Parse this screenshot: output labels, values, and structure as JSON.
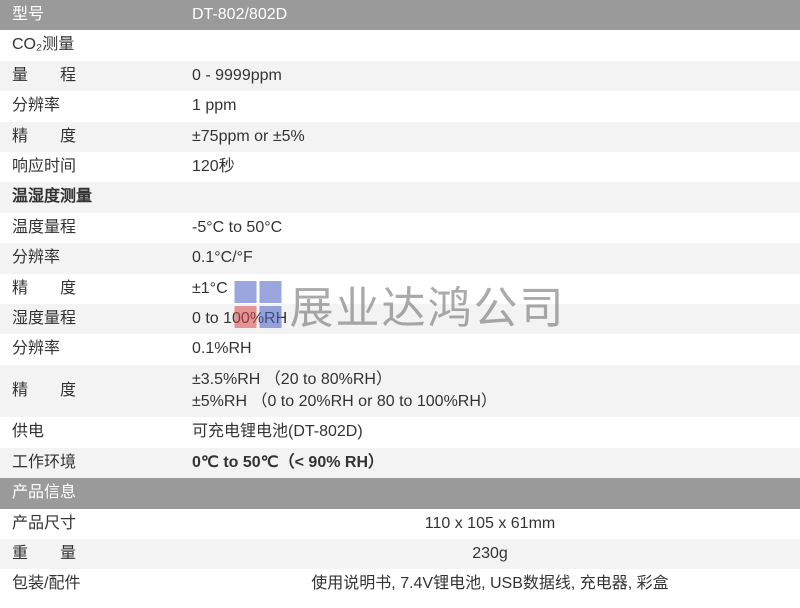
{
  "colors": {
    "darkHeader": "#9a9a9a",
    "lightRow": "#f3f3f3",
    "whiteRow": "#ffffff",
    "text": "#333333",
    "headerText": "#ffffff",
    "wmBlue": "#4a5fc4",
    "wmRed": "#d64545",
    "wmText": "#666666"
  },
  "watermark": {
    "text": "展业达鸿公司"
  },
  "rows": [
    {
      "tone": "dark",
      "label": "型号",
      "value": "DT-802/802D"
    },
    {
      "tone": "white",
      "label": "CO₂测量",
      "section": true
    },
    {
      "tone": "light",
      "label": "量　　程",
      "value": "0 - 9999ppm"
    },
    {
      "tone": "white",
      "label": "分辨率",
      "value": "1 ppm"
    },
    {
      "tone": "light",
      "label": "精　　度",
      "value": "±75ppm or ±5%"
    },
    {
      "tone": "white",
      "label": "响应时间",
      "value": "120秒"
    },
    {
      "tone": "light",
      "label": "温湿度测量",
      "bold": true,
      "section": true
    },
    {
      "tone": "white",
      "label": "温度量程",
      "value": "-5°C to 50°C"
    },
    {
      "tone": "light",
      "label": "分辨率",
      "value": "0.1°C/°F"
    },
    {
      "tone": "white",
      "label": "精　　度",
      "value": "±1°C"
    },
    {
      "tone": "light",
      "label": "湿度量程",
      "value": "0 to 100%RH"
    },
    {
      "tone": "white",
      "label": "分辨率",
      "value": "0.1%RH"
    },
    {
      "tone": "light",
      "label": "精　　度",
      "value": "±3.5%RH （20 to 80%RH）\n±5%RH （0 to 20%RH or 80 to 100%RH）",
      "tall": true
    },
    {
      "tone": "white",
      "label": "供电",
      "value": "可充电锂电池(DT-802D)"
    },
    {
      "tone": "light",
      "label": "工作环境",
      "value": "0℃ to 50℃（< 90% RH）",
      "boldValue": true
    },
    {
      "tone": "dark",
      "label": "产品信息",
      "section": true
    },
    {
      "tone": "white",
      "label": "产品尺寸",
      "value": "110 x 105 x 61mm",
      "centeredValue": true
    },
    {
      "tone": "light",
      "label": "重　　量",
      "value": "230g",
      "centeredValue": true
    },
    {
      "tone": "white",
      "label": "包装/配件",
      "value": "使用说明书, 7.4V锂电池, USB数据线, 充电器, 彩盒",
      "centeredValue": true
    }
  ]
}
